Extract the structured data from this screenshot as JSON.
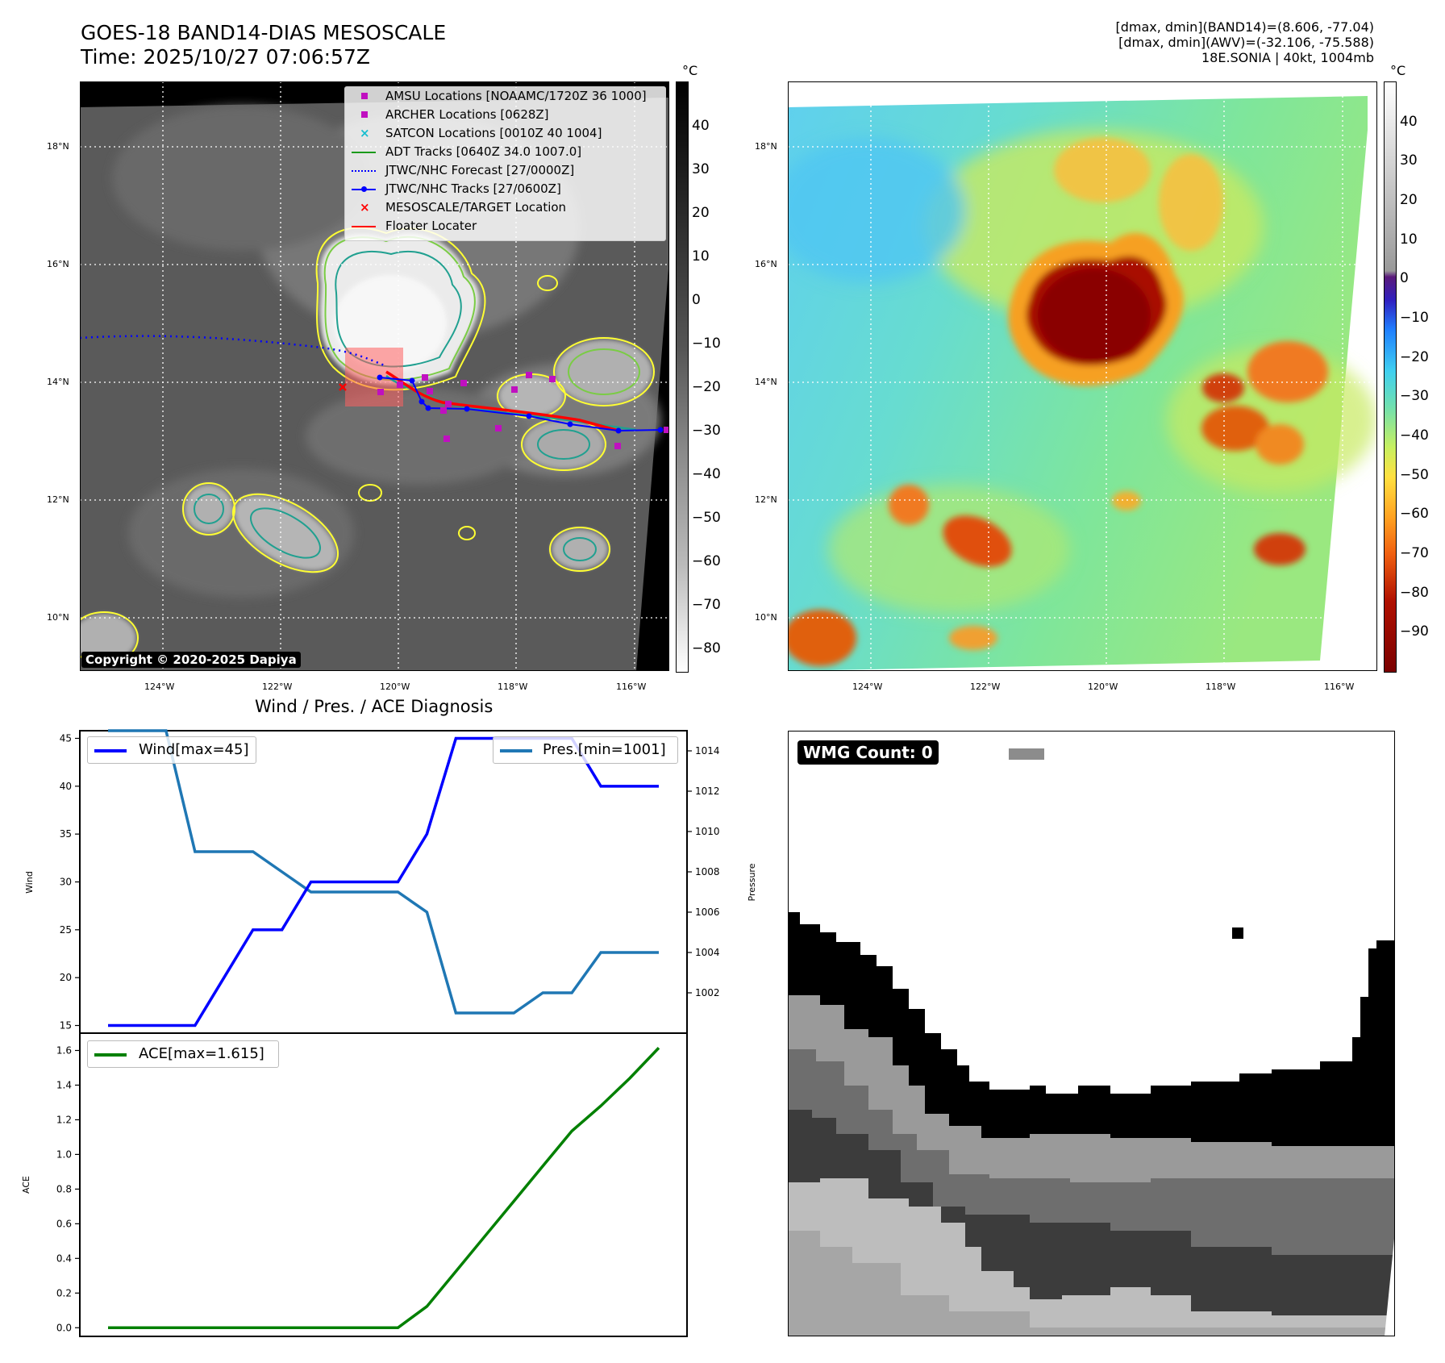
{
  "header": {
    "title_line1": "GOES-18 BAND14-DIAS MESOSCALE",
    "title_line2": "Time: 2025/10/27 07:06:57Z",
    "info_line1": "[dmax, dmin](BAND14)=(8.606, -77.04)",
    "info_line2": "[dmax, dmin](AWV)=(-32.106, -75.588)",
    "info_line3": "18E.SONIA | 40kt, 1004mb"
  },
  "map_axes": {
    "lon_labels": [
      "124°W",
      "122°W",
      "120°W",
      "118°W",
      "116°W"
    ],
    "lat_labels": [
      "18°N",
      "16°N",
      "14°N",
      "12°N",
      "10°N"
    ]
  },
  "colorbar_left": {
    "unit": "°C",
    "ticks": [
      "40",
      "30",
      "20",
      "10",
      "0",
      "−10",
      "−20",
      "−30",
      "−40",
      "−50",
      "−60",
      "−70",
      "−80"
    ]
  },
  "colorbar_right": {
    "unit": "°C",
    "ticks": [
      "40",
      "30",
      "20",
      "10",
      "0",
      "−10",
      "−20",
      "−30",
      "−40",
      "−50",
      "−60",
      "−70",
      "−80",
      "−90"
    ]
  },
  "legend_map": [
    {
      "label": "AMSU Locations [NOAAMC/1720Z 36 1000]",
      "color": "#c010c0",
      "marker": "square"
    },
    {
      "label": "ARCHER Locations [0628Z]",
      "color": "#c010c0",
      "marker": "square"
    },
    {
      "label": "SATCON Locations [0010Z 40 1004]",
      "color": "#17becf",
      "marker": "x"
    },
    {
      "label": "ADT Tracks [0640Z 34.0 1007.0]",
      "color": "#1a9a1a",
      "marker": "line"
    },
    {
      "label": "JTWC/NHC Forecast [27/0000Z]",
      "color": "#0000ff",
      "marker": "dotted"
    },
    {
      "label": "JTWC/NHC Tracks [27/0600Z]",
      "color": "#0000ff",
      "marker": "dotline"
    },
    {
      "label": "MESOSCALE/TARGET Location",
      "color": "#ff0000",
      "marker": "x"
    },
    {
      "label": "Floater Locater",
      "color": "#ff0000",
      "marker": "line"
    }
  ],
  "copyright": "Copyright © 2020-2025 Dapiya",
  "diagnosis_title": "Wind / Pres. / ACE Diagnosis",
  "wmg_label": "WMG Count: 0",
  "colors": {
    "wind": "#0000ff",
    "pres": "#1f77b4",
    "ace": "#008000"
  },
  "chart_data": [
    {
      "type": "line",
      "title": "Wind / Pres. / ACE Diagnosis",
      "ylabel": "Wind",
      "ylabel_right": "Pressure",
      "ylim": [
        14.2,
        45.8
      ],
      "y_ticks": [
        15,
        20,
        25,
        30,
        35,
        40,
        45
      ],
      "ylim_right": [
        1000.0,
        1015.0
      ],
      "y_ticks_right": [
        1002,
        1004,
        1006,
        1008,
        1010,
        1012,
        1014
      ],
      "x": [
        0,
        1,
        2,
        3,
        4,
        5,
        6,
        7,
        8,
        9,
        10,
        11,
        12,
        13,
        14,
        15,
        16,
        17,
        18,
        19
      ],
      "series": [
        {
          "name": "Wind",
          "legend": "Wind[max=45]",
          "axis": "left",
          "values": [
            15,
            15,
            15,
            15,
            20,
            25,
            25,
            30,
            30,
            30,
            30,
            35,
            45,
            45,
            45,
            45,
            45,
            40,
            40,
            40
          ]
        },
        {
          "name": "Pres.",
          "legend": "Pres.[min=1001]",
          "axis": "right",
          "values": [
            1015,
            1015,
            1015,
            1009,
            1009,
            1009,
            1008,
            1007,
            1007,
            1007,
            1007,
            1006,
            1001,
            1001,
            1001,
            1002,
            1002,
            1004,
            1004,
            1004
          ]
        }
      ]
    },
    {
      "type": "line",
      "ylabel": "ACE",
      "ylim": [
        -0.05,
        1.7
      ],
      "y_ticks": [
        "0.0",
        "0.2",
        "0.4",
        "0.6",
        "0.8",
        "1.0",
        "1.2",
        "1.4",
        "1.6"
      ],
      "x": [
        0,
        1,
        2,
        3,
        4,
        5,
        6,
        7,
        8,
        9,
        10,
        11,
        12,
        13,
        14,
        15,
        16,
        17,
        18,
        19
      ],
      "series": [
        {
          "name": "ACE",
          "legend": "ACE[max=1.615]",
          "values": [
            0,
            0,
            0,
            0,
            0,
            0,
            0,
            0,
            0,
            0,
            0,
            0.123,
            0.325,
            0.528,
            0.73,
            0.933,
            1.135,
            1.28,
            1.44,
            1.615
          ]
        }
      ]
    }
  ]
}
